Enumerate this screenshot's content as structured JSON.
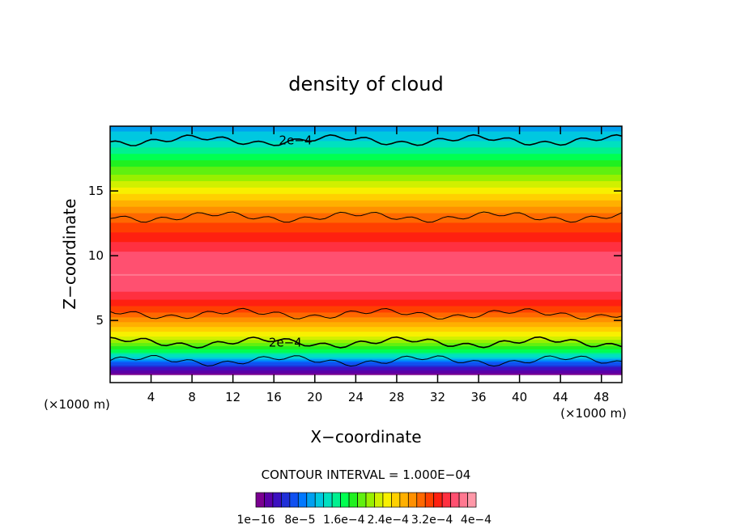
{
  "chart_data": {
    "type": "heatmap",
    "title": "density of cloud",
    "xlabel": "X−coordinate",
    "ylabel": "Z−coordinate",
    "x_unit": "(×1000 m)",
    "x_unit_right": "(×1000 m)",
    "xlim": [
      0,
      50
    ],
    "ylim": [
      0.2,
      20
    ],
    "x_ticks": [
      4,
      8,
      12,
      16,
      20,
      24,
      28,
      32,
      36,
      40,
      44,
      48
    ],
    "y_ticks": [
      5,
      10,
      15
    ],
    "contour_labels": [
      {
        "text": "2e−4",
        "x": 16.5,
        "z": 18.9
      },
      {
        "text": "2e−4",
        "x": 15.5,
        "z": 3.3
      }
    ],
    "contour_lines_z": [
      1.9,
      3.3,
      5.5,
      13.0,
      18.9
    ],
    "levels": [
      1e-16,
      2e-05,
      4e-05,
      6e-05,
      8e-05,
      0.0001,
      0.00012,
      0.00014,
      0.00016,
      0.00018,
      0.0002,
      0.00022,
      0.00024,
      0.00026,
      0.00028,
      0.0003,
      0.00032,
      0.00034,
      0.00036,
      0.00038,
      0.0004
    ],
    "profile": [
      {
        "z": 0.8,
        "value": 1e-05
      },
      {
        "z": 1.2,
        "value": 3e-05
      },
      {
        "z": 1.6,
        "value": 6e-05
      },
      {
        "z": 2.0,
        "value": 0.0001
      },
      {
        "z": 2.6,
        "value": 0.00016
      },
      {
        "z": 3.3,
        "value": 0.0002
      },
      {
        "z": 4.0,
        "value": 0.00024
      },
      {
        "z": 5.0,
        "value": 0.00028
      },
      {
        "z": 6.0,
        "value": 0.00032
      },
      {
        "z": 7.0,
        "value": 0.00035
      },
      {
        "z": 8.5,
        "value": 0.00037
      },
      {
        "z": 10.0,
        "value": 0.00036
      },
      {
        "z": 11.5,
        "value": 0.00033
      },
      {
        "z": 13.0,
        "value": 0.0003
      },
      {
        "z": 14.0,
        "value": 0.00027
      },
      {
        "z": 15.0,
        "value": 0.00024
      },
      {
        "z": 16.0,
        "value": 0.00021
      },
      {
        "z": 17.0,
        "value": 0.00018
      },
      {
        "z": 18.0,
        "value": 0.00015
      },
      {
        "z": 19.0,
        "value": 0.00012
      },
      {
        "z": 20.0,
        "value": 0.0001
      }
    ],
    "colorbar": {
      "title": "CONTOUR INTERVAL = 1.000E−04",
      "tick_labels": [
        "1e−16",
        "8e−5",
        "1.6e−4",
        "2.4e−4",
        "3.2e−4",
        "4e−4"
      ],
      "colors": [
        "#7a0090",
        "#5a00a8",
        "#3c10c0",
        "#2030d8",
        "#1050f0",
        "#0078ff",
        "#00a0f0",
        "#00c8e0",
        "#00e0c0",
        "#00f090",
        "#00ff50",
        "#20f020",
        "#60f010",
        "#98f000",
        "#d0f000",
        "#f8f000",
        "#ffd000",
        "#ffb000",
        "#ff9000",
        "#ff6800",
        "#ff4000",
        "#ff2010",
        "#ff3040",
        "#ff5070",
        "#ff7890",
        "#ff98a8"
      ]
    }
  }
}
